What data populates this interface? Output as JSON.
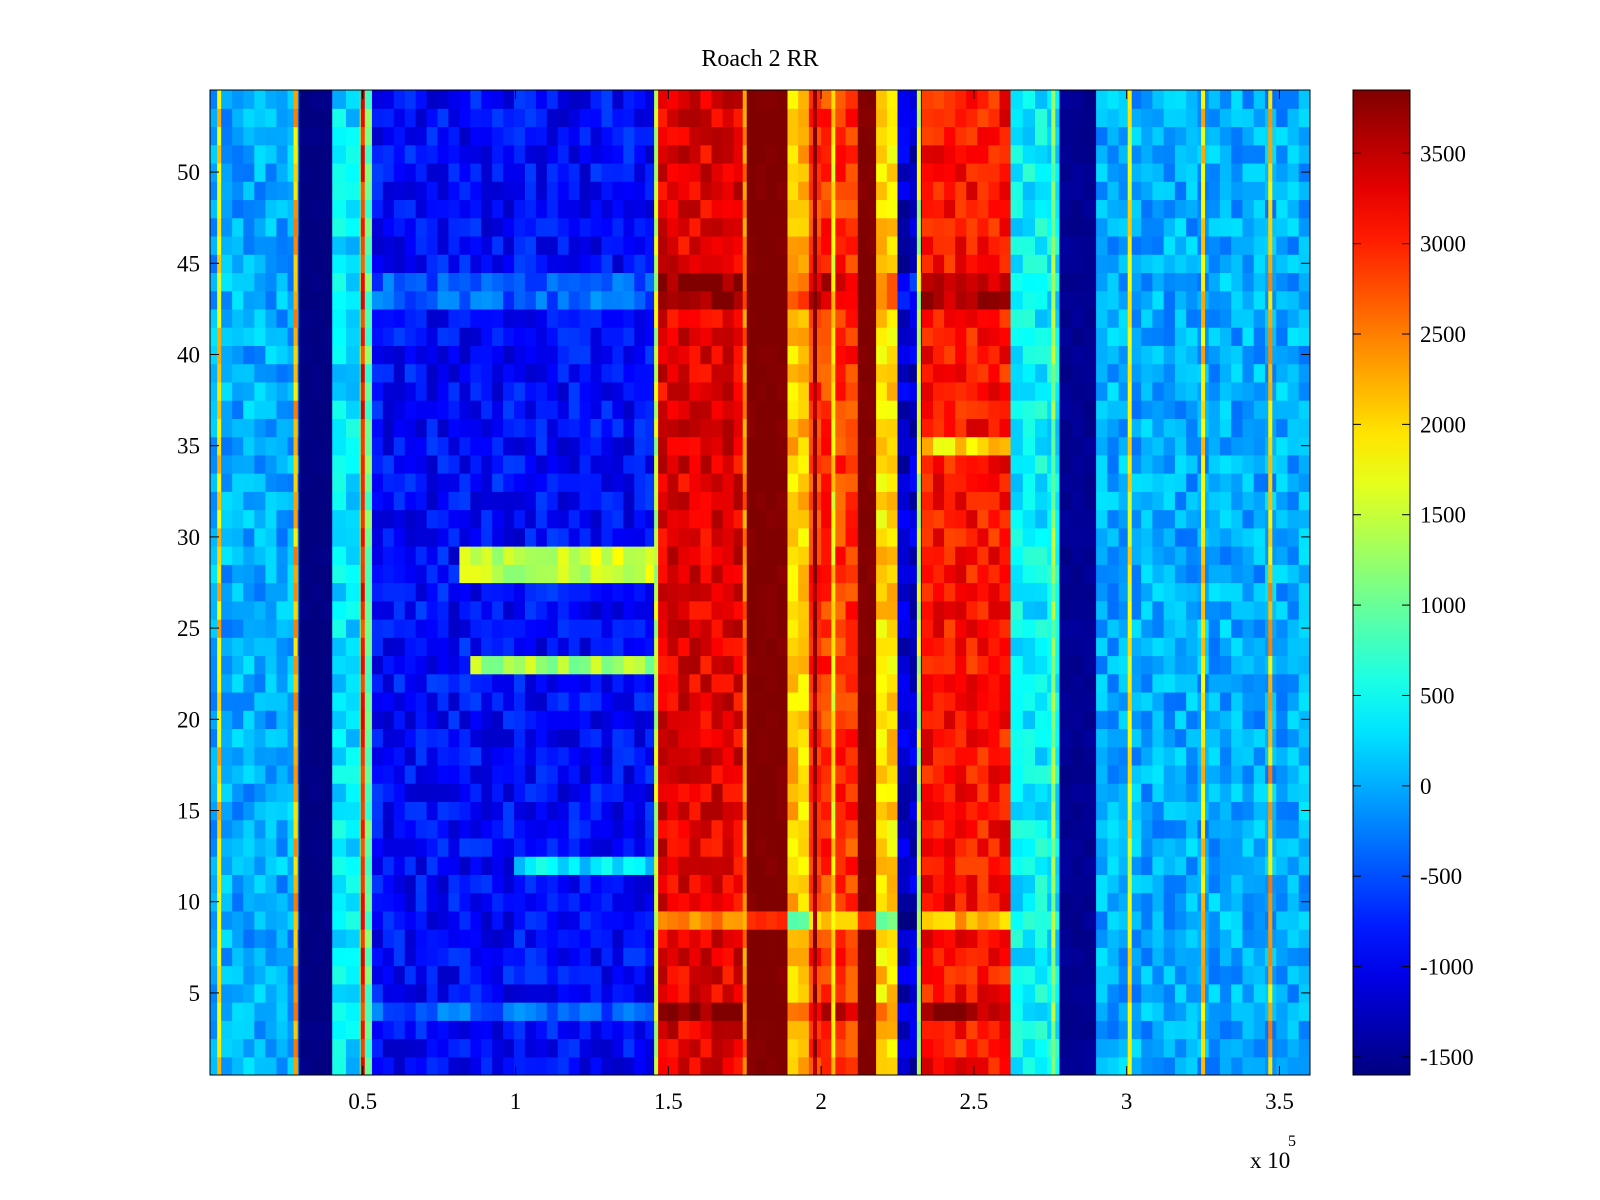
{
  "chart_data": {
    "type": "heatmap",
    "title": "Roach 2 RR",
    "xlabel": "",
    "ylabel": "",
    "x_exponent_label": "x 10",
    "x_exponent_power": "5",
    "xlim": [
      0,
      360000
    ],
    "ylim": [
      0.5,
      54.5
    ],
    "rows": 54,
    "x_ticks": [
      0.5,
      1,
      1.5,
      2,
      2.5,
      3,
      3.5
    ],
    "x_tick_labels": [
      "0.5",
      "1",
      "1.5",
      "2",
      "2.5",
      "3",
      "3.5"
    ],
    "y_ticks": [
      5,
      10,
      15,
      20,
      25,
      30,
      35,
      40,
      45,
      50
    ],
    "y_tick_labels": [
      "5",
      "10",
      "15",
      "20",
      "25",
      "30",
      "35",
      "40",
      "45",
      "50"
    ],
    "colorbar": {
      "colormap": "jet",
      "clim": [
        -1600,
        3850
      ],
      "ticks": [
        -1500,
        -1000,
        -500,
        0,
        500,
        1000,
        1500,
        2000,
        2500,
        3000,
        3500
      ],
      "tick_labels": [
        "-1500",
        "-1000",
        "-500",
        "0",
        "500",
        "1000",
        "1500",
        "2000",
        "2500",
        "3000",
        "3500"
      ]
    },
    "bands": [
      {
        "x_start": 0,
        "x_end": 29000,
        "value": 0
      },
      {
        "x_start": 29000,
        "x_end": 40000,
        "value": -1600
      },
      {
        "x_start": 40000,
        "x_end": 49000,
        "value": 300
      },
      {
        "x_start": 49000,
        "x_end": 53000,
        "value": 1000
      },
      {
        "x_start": 53000,
        "x_end": 146000,
        "value": -900
      },
      {
        "x_start": 146000,
        "x_end": 175000,
        "value": 3300
      },
      {
        "x_start": 175000,
        "x_end": 189000,
        "value": 3850
      },
      {
        "x_start": 189000,
        "x_end": 196000,
        "value": 2100
      },
      {
        "x_start": 196000,
        "x_end": 212000,
        "value": 2900
      },
      {
        "x_start": 212000,
        "x_end": 218000,
        "value": 3850
      },
      {
        "x_start": 218000,
        "x_end": 225000,
        "value": 2000
      },
      {
        "x_start": 225000,
        "x_end": 233000,
        "value": -1200
      },
      {
        "x_start": 233000,
        "x_end": 262000,
        "value": 3100
      },
      {
        "x_start": 262000,
        "x_end": 278000,
        "value": 400
      },
      {
        "x_start": 278000,
        "x_end": 290000,
        "value": -1500
      },
      {
        "x_start": 290000,
        "x_end": 360000,
        "value": 0
      }
    ],
    "stripes": [
      {
        "x": 3000,
        "value": 2000
      },
      {
        "x": 28000,
        "value": 2200
      },
      {
        "x": 50000,
        "value": 3000
      },
      {
        "x": 146000,
        "value": 1500
      },
      {
        "x": 175000,
        "value": 2500
      },
      {
        "x": 198000,
        "value": 3850
      },
      {
        "x": 204000,
        "value": 1900
      },
      {
        "x": 232000,
        "value": 1500
      },
      {
        "x": 276000,
        "value": 1200
      },
      {
        "x": 301000,
        "value": 1800
      },
      {
        "x": 325000,
        "value": 2000
      },
      {
        "x": 347000,
        "value": 2200
      }
    ],
    "row_variations": [
      {
        "rows": [
          4
        ],
        "x_start": 53000,
        "x_end": 262000,
        "delta": 500
      },
      {
        "rows": [
          9
        ],
        "x_start": 146000,
        "x_end": 262000,
        "delta": -900
      },
      {
        "rows": [
          12
        ],
        "x_start": 100000,
        "x_end": 146000,
        "delta": 1200
      },
      {
        "rows": [
          23
        ],
        "x_start": 85000,
        "x_end": 146000,
        "delta": 2200
      },
      {
        "rows": [
          28,
          29
        ],
        "x_start": 83000,
        "x_end": 146000,
        "delta": 2400
      },
      {
        "rows": [
          35
        ],
        "x_start": 233000,
        "x_end": 262000,
        "delta": -1100
      },
      {
        "rows": [
          43,
          44
        ],
        "x_start": 53000,
        "x_end": 262000,
        "delta": 500
      }
    ]
  }
}
